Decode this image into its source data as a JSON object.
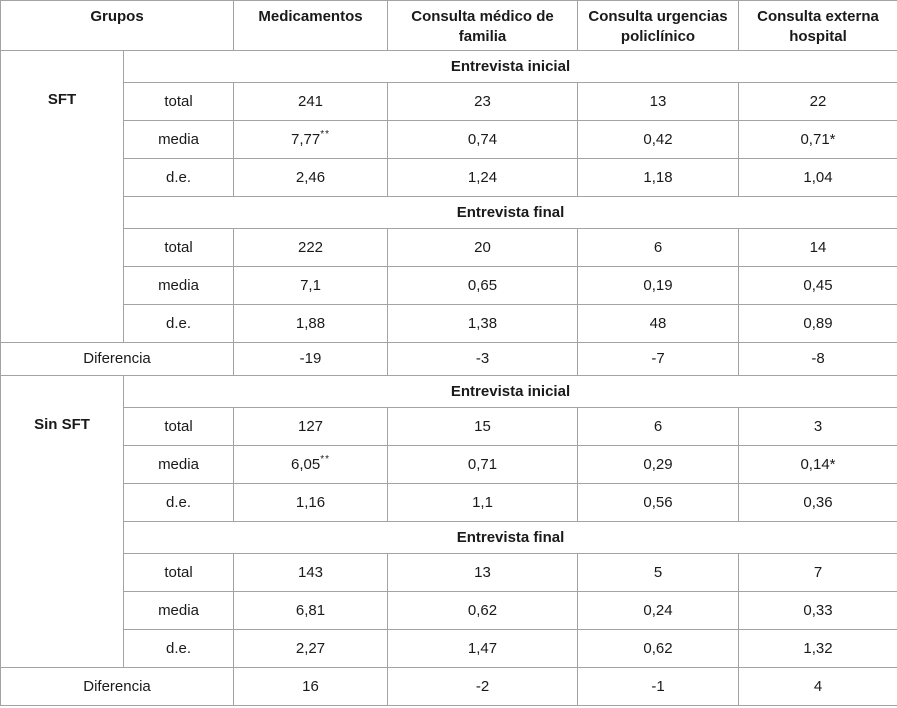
{
  "header": {
    "grupos": "Grupos",
    "cols": [
      "Medicamentos",
      "Consulta médico de familia",
      "Consulta urgencias policlínico",
      "Consulta externa hospital"
    ]
  },
  "labels": {
    "inicial": "Entrevista inicial",
    "final": "Entrevista final",
    "total": "total",
    "media": "media",
    "de": "d.e.",
    "diferencia": "Diferencia"
  },
  "colors": {
    "border": "#a3a3a3",
    "text": "#1a1a1a",
    "background": "#ffffff"
  },
  "sft": {
    "name": "SFT",
    "inicial": {
      "total": [
        "241",
        "23",
        "13",
        "22"
      ],
      "media": [
        {
          "text": "7,77",
          "sup": "**"
        },
        {
          "text": "0,74",
          "sup": ""
        },
        {
          "text": "0,42",
          "sup": ""
        },
        {
          "text": "0,71*",
          "sup": ""
        }
      ],
      "de": [
        "2,46",
        "1,24",
        "1,18",
        "1,04"
      ]
    },
    "final": {
      "total": [
        "222",
        "20",
        "6",
        "14"
      ],
      "media": [
        "7,1",
        "0,65",
        "0,19",
        "0,45"
      ],
      "de": [
        "1,88",
        "1,38",
        "48",
        "0,89"
      ]
    },
    "diferencia": [
      "-19",
      "-3",
      "-7",
      "-8"
    ]
  },
  "sinsft": {
    "name": "Sin SFT",
    "inicial": {
      "total": [
        "127",
        "15",
        "6",
        "3"
      ],
      "media": [
        {
          "text": "6,05",
          "sup": "**"
        },
        {
          "text": "0,71",
          "sup": ""
        },
        {
          "text": "0,29",
          "sup": ""
        },
        {
          "text": "0,14*",
          "sup": ""
        }
      ],
      "de": [
        "1,16",
        "1,1",
        "0,56",
        "0,36"
      ]
    },
    "final": {
      "total": [
        "143",
        "13",
        "5",
        "7"
      ],
      "media": [
        "6,81",
        "0,62",
        "0,24",
        "0,33"
      ],
      "de": [
        "2,27",
        "1,47",
        "0,62",
        "1,32"
      ]
    },
    "diferencia": [
      "16",
      "-2",
      "-1",
      "4"
    ]
  }
}
